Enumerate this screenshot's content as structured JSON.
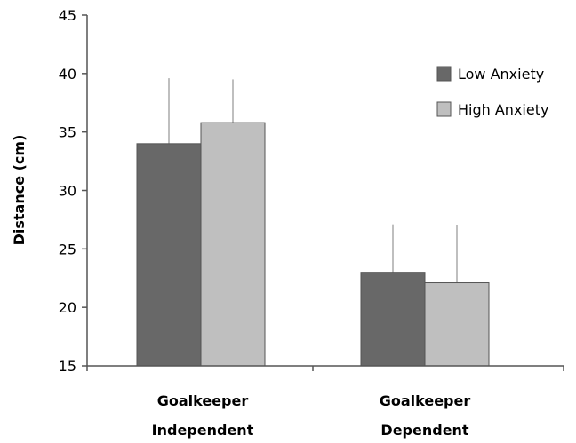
{
  "chart_data": {
    "type": "bar",
    "title": "",
    "xlabel": "",
    "ylabel": "Distance (cm)",
    "ylim": [
      15,
      45
    ],
    "yticks": [
      15,
      20,
      25,
      30,
      35,
      40,
      45
    ],
    "grid": false,
    "legend_position": "top-right",
    "categories": [
      [
        "Goalkeeper",
        "Independent"
      ],
      [
        "Goalkeeper",
        "Dependent"
      ]
    ],
    "series": [
      {
        "name": "Low Anxiety",
        "color": "#686868",
        "values": [
          34.0,
          23.0
        ],
        "error": [
          5.6,
          4.1
        ]
      },
      {
        "name": "High Anxiety",
        "color": "#bfbfbf",
        "values": [
          35.8,
          22.1
        ],
        "error": [
          3.7,
          4.9
        ]
      }
    ],
    "error_bar_color": "#bfbfbf"
  }
}
